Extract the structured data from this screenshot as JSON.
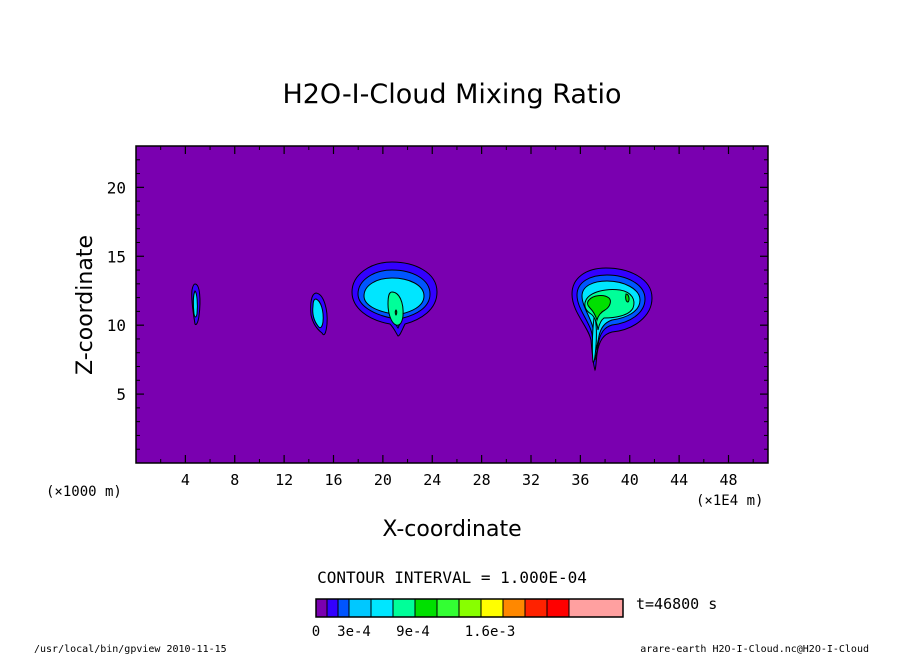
{
  "chart_data": {
    "type": "heatmap",
    "title": "H2O-I-Cloud Mixing Ratio",
    "xlabel": "X-coordinate",
    "ylabel": "Z-coordinate",
    "x_unit": "(×1E4 m)",
    "y_unit": "(×1000 m)",
    "xlim": [
      0,
      51.2
    ],
    "ylim": [
      0,
      23
    ],
    "x_ticks": [
      4,
      8,
      12,
      16,
      20,
      24,
      28,
      32,
      36,
      40,
      44,
      48
    ],
    "y_ticks": [
      5,
      10,
      15,
      20
    ],
    "contour_interval_text": "CONTOUR INTERVAL = 1.000E-04",
    "time_text": "t=46800 s",
    "colorbar": {
      "colors": [
        "#7a00b0",
        "#3300ff",
        "#0055ff",
        "#00c8ff",
        "#00e6ff",
        "#00ff99",
        "#00e000",
        "#33ff33",
        "#88ff00",
        "#ffff00",
        "#ff8800",
        "#ff2200",
        "#ff0000",
        "#ffa0a0"
      ],
      "labels": [
        "0",
        "3e-4",
        "9e-4",
        "1.6e-3"
      ]
    },
    "cloud_cells": [
      {
        "x": 4.9,
        "z": 11.5,
        "peak": 0.0002
      },
      {
        "x": 15.0,
        "z": 11.0,
        "peak": 0.0003
      },
      {
        "x": 21.0,
        "z": 12.0,
        "peak": 0.0006
      },
      {
        "x": 38.0,
        "z": 12.0,
        "peak": 0.0006
      }
    ]
  },
  "footer": {
    "left": "/usr/local/bin/gpview  2010-11-15",
    "right": "arare-earth_H2O-I-Cloud.nc@H2O-I-Cloud"
  },
  "colors": {
    "background": "#7a00b0",
    "level1": "#3300ff",
    "level2": "#0055ff",
    "level3": "#00e6ff",
    "level4": "#00ff99",
    "level5": "#33ff33"
  }
}
